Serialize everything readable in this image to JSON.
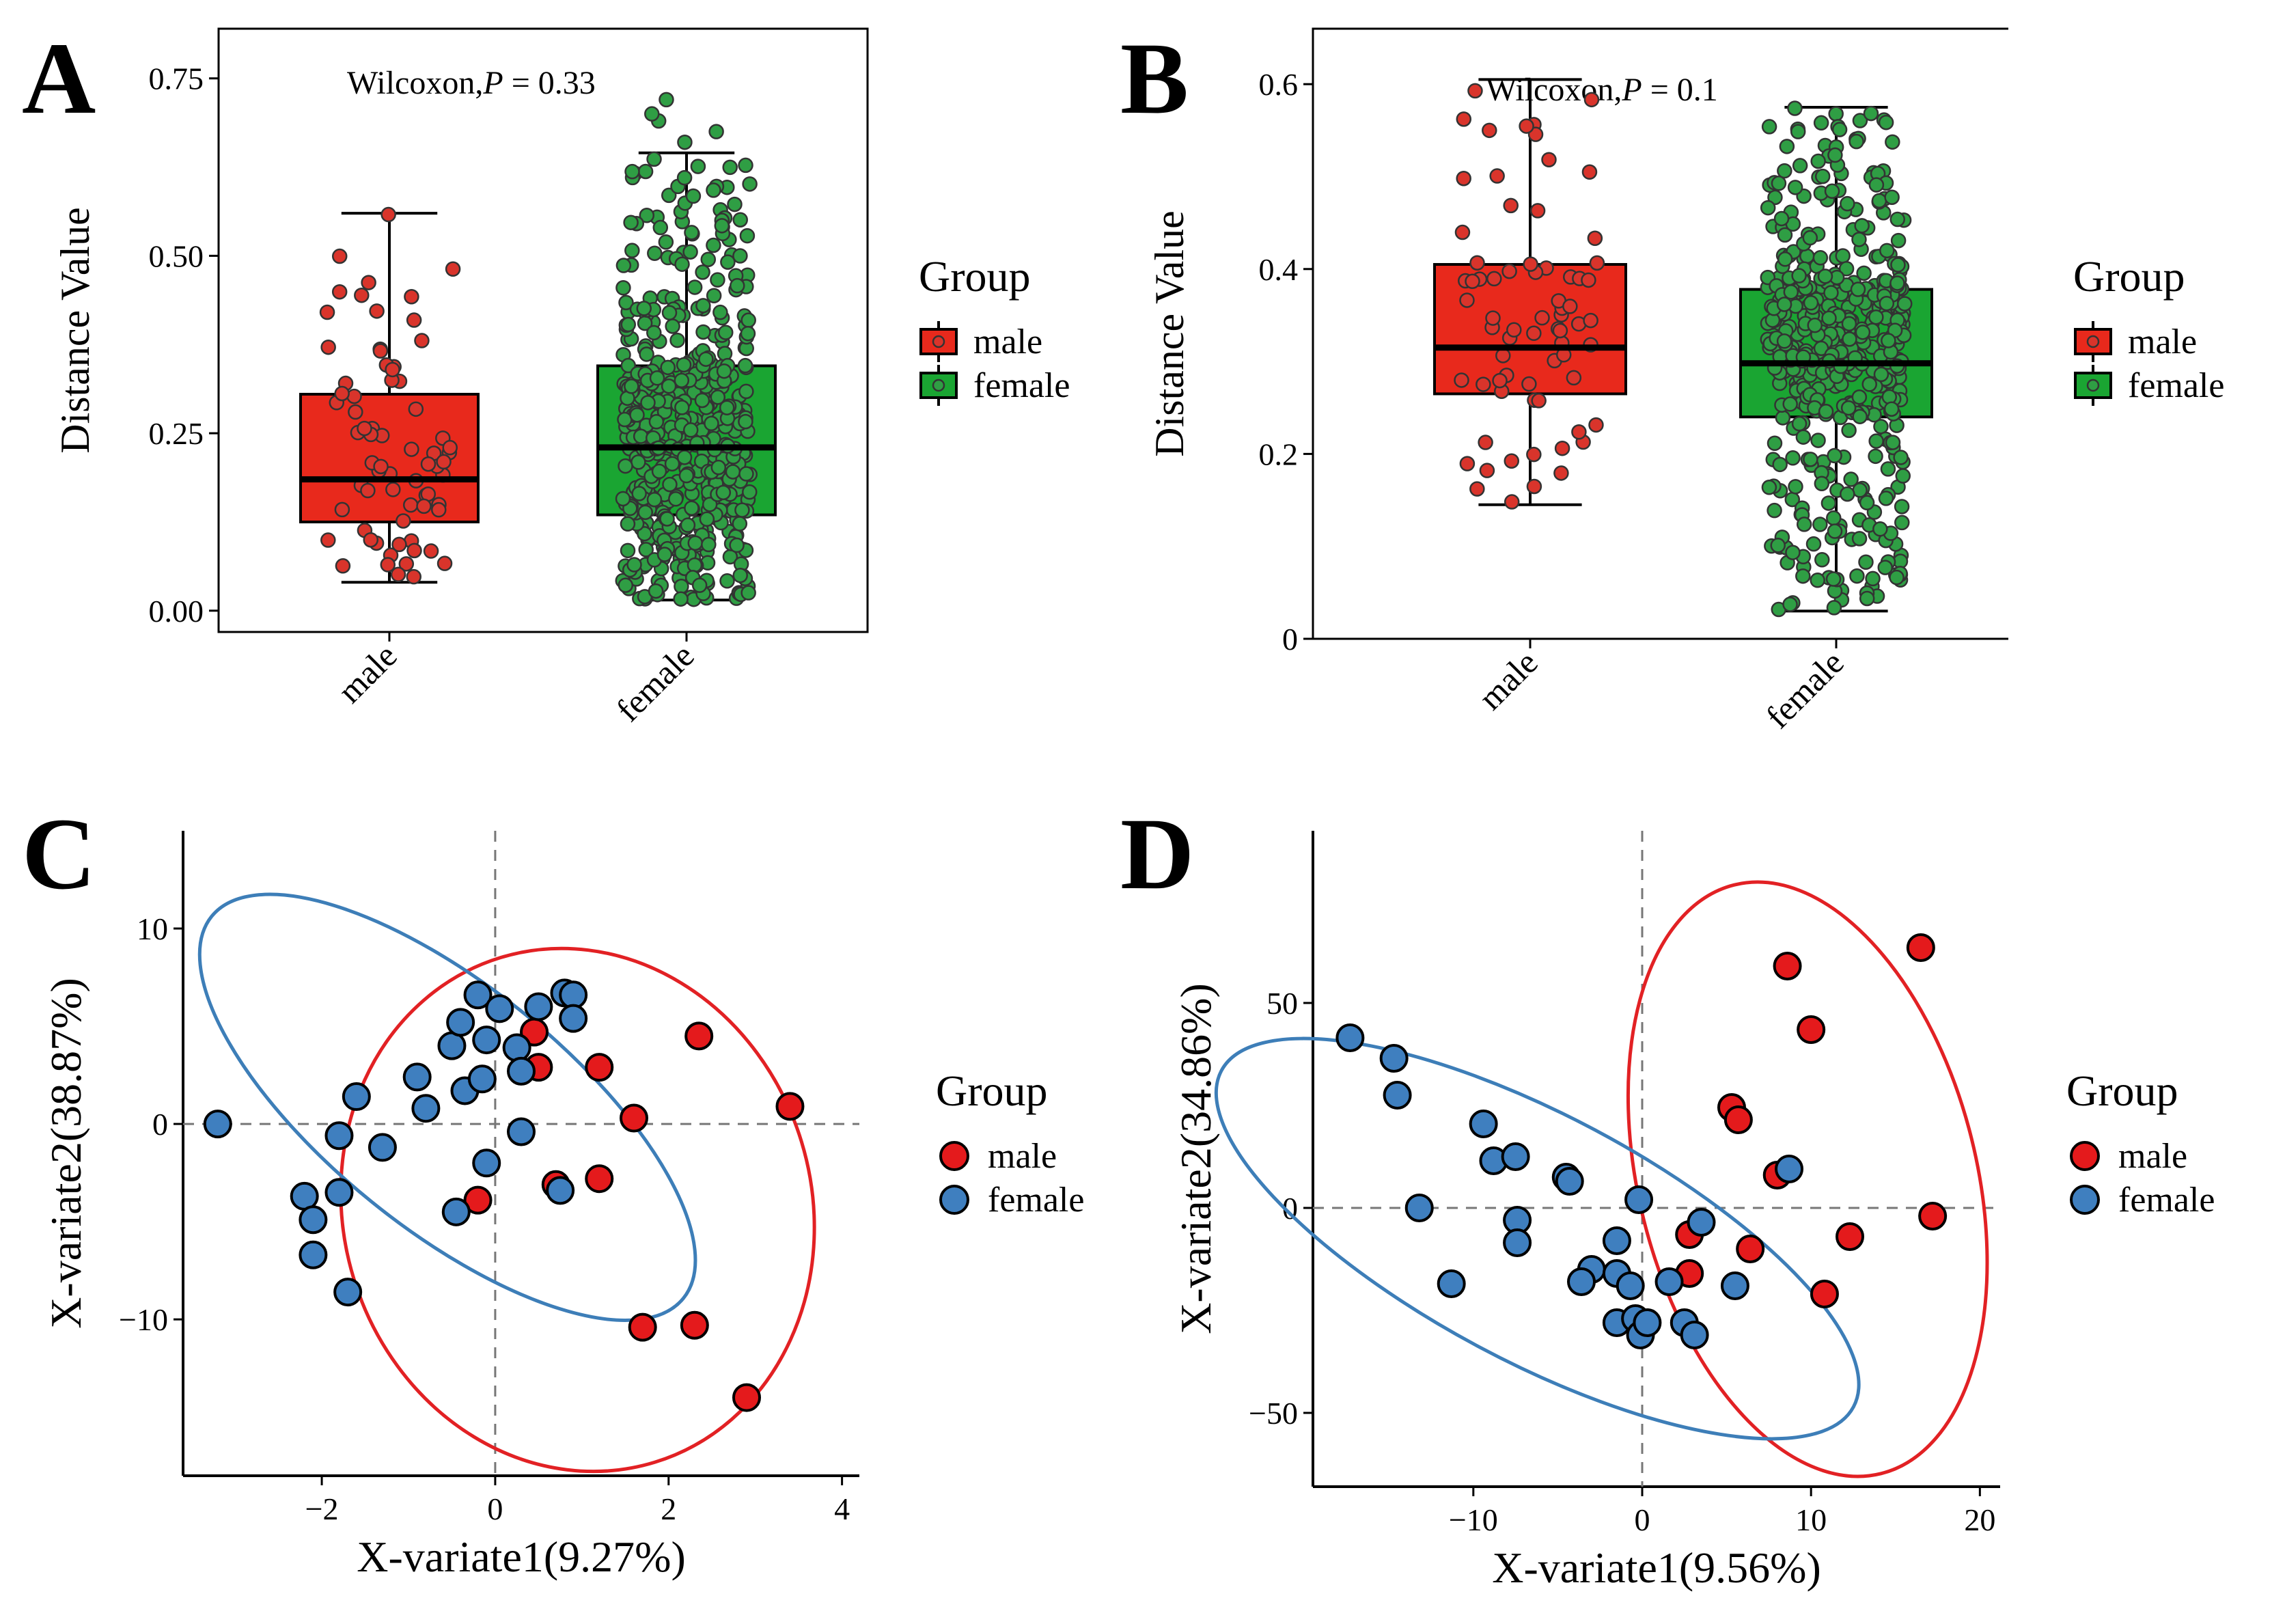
{
  "colors": {
    "male": "#e8291c",
    "female": "#1aa532",
    "male_pt": "#d9342b",
    "female_pt": "#2f9e44",
    "ell_male": "#e22124",
    "ell_female": "#3d7eb8",
    "pca_male": "#e41a1c",
    "pca_female": "#3f7fbf"
  },
  "legend": {
    "title": "Group",
    "male": "male",
    "female": "female"
  },
  "panels": {
    "A": {
      "label": "A",
      "annotation_prefix": "Wilcoxon,",
      "annotation_p": "P",
      "annotation_suffix": " = 0.33"
    },
    "B": {
      "label": "B",
      "annotation_prefix": "Wilcoxon,",
      "annotation_p": "P",
      "annotation_suffix": " = 0.1"
    },
    "C": {
      "label": "C"
    },
    "D": {
      "label": "D"
    }
  },
  "chart_data": [
    {
      "id": "A",
      "type": "box",
      "title": "",
      "xlabel": "",
      "ylabel": "Distance Value",
      "categories": [
        "male",
        "female"
      ],
      "ylim": [
        -0.03,
        0.82
      ],
      "yticks": [
        0.0,
        0.25,
        0.5,
        0.75
      ],
      "ytick_labels": [
        "0.00",
        "0.25",
        "0.50",
        "0.75"
      ],
      "boxes": [
        {
          "name": "male",
          "min": 0.04,
          "q1": 0.125,
          "median": 0.185,
          "q3": 0.305,
          "max": 0.56,
          "n_points": 70
        },
        {
          "name": "female",
          "min": 0.015,
          "q1": 0.135,
          "median": 0.23,
          "q3": 0.345,
          "max": 0.645,
          "n_points": 480
        }
      ],
      "outliers": {
        "female": [
          0.66,
          0.675,
          0.69,
          0.7,
          0.72
        ]
      },
      "annotation": "Wilcoxon,P = 0.33"
    },
    {
      "id": "B",
      "type": "box",
      "title": "",
      "xlabel": "",
      "ylabel": "Distance Value",
      "categories": [
        "male",
        "female"
      ],
      "ylim": [
        0,
        0.66
      ],
      "yticks": [
        0,
        0.2,
        0.4,
        0.6
      ],
      "ytick_labels": [
        "0",
        "0.2",
        "0.4",
        "0.6"
      ],
      "boxes": [
        {
          "name": "male",
          "min": 0.145,
          "q1": 0.265,
          "median": 0.315,
          "q3": 0.405,
          "max": 0.605,
          "n_points": 70
        },
        {
          "name": "female",
          "min": 0.03,
          "q1": 0.24,
          "median": 0.298,
          "q3": 0.378,
          "max": 0.575,
          "n_points": 480
        }
      ],
      "annotation": "Wilcoxon,P = 0.1"
    },
    {
      "id": "C",
      "type": "scatter",
      "xlabel": "X-variate1(9.27%)",
      "ylabel": "X-variate2(38.87%)",
      "xlim": [
        -3.6,
        4.2
      ],
      "ylim": [
        -18.0,
        15.0
      ],
      "xticks": [
        -2,
        0,
        2,
        4
      ],
      "yticks": [
        -10,
        0,
        10
      ],
      "series": [
        {
          "name": "male",
          "points": [
            [
              0.45,
              4.7
            ],
            [
              0.5,
              2.9
            ],
            [
              1.2,
              2.9
            ],
            [
              2.35,
              4.5
            ],
            [
              3.4,
              0.9
            ],
            [
              1.6,
              0.3
            ],
            [
              1.2,
              -2.8
            ],
            [
              0.7,
              -3.1
            ],
            [
              -0.2,
              -3.9
            ],
            [
              1.7,
              -10.4
            ],
            [
              2.3,
              -10.3
            ],
            [
              2.9,
              -14.0
            ]
          ]
        },
        {
          "name": "female",
          "points": [
            [
              -3.2,
              0.0
            ],
            [
              -2.2,
              -3.7
            ],
            [
              -2.1,
              -4.9
            ],
            [
              -2.1,
              -6.7
            ],
            [
              -1.8,
              -0.6
            ],
            [
              -1.8,
              -3.5
            ],
            [
              -1.7,
              -8.6
            ],
            [
              -1.6,
              1.4
            ],
            [
              -1.3,
              -1.2
            ],
            [
              -0.9,
              2.4
            ],
            [
              -0.8,
              0.8
            ],
            [
              -0.5,
              4.0
            ],
            [
              -0.4,
              5.2
            ],
            [
              -0.35,
              1.7
            ],
            [
              -0.2,
              6.6
            ],
            [
              -0.1,
              4.3
            ],
            [
              -0.15,
              2.3
            ],
            [
              0.05,
              5.9
            ],
            [
              0.25,
              3.9
            ],
            [
              0.3,
              2.7
            ],
            [
              0.3,
              -0.4
            ],
            [
              -0.1,
              -2.0
            ],
            [
              -0.45,
              -4.5
            ],
            [
              0.5,
              6.0
            ],
            [
              0.75,
              -3.4
            ],
            [
              0.8,
              6.7
            ],
            [
              0.9,
              6.6
            ],
            [
              0.9,
              5.4
            ]
          ]
        }
      ],
      "ellipses": [
        {
          "group": "male",
          "cx": 0.95,
          "cy": -4.4,
          "rx": 2.7,
          "ry": 13.5,
          "rotate_deg": -17
        },
        {
          "group": "female",
          "cx": -0.55,
          "cy": 0.85,
          "rx": 3.5,
          "ry": 6.2,
          "rotate_deg": 39
        }
      ]
    },
    {
      "id": "D",
      "type": "scatter",
      "xlabel": "X-variate1(9.56%)",
      "ylabel": "X-variate2(34.86%)",
      "xlim": [
        -19.5,
        21.2
      ],
      "ylim": [
        -68.0,
        92.0
      ],
      "xticks": [
        -10,
        0,
        10,
        20
      ],
      "yticks": [
        -50,
        0,
        50
      ],
      "series": [
        {
          "name": "male",
          "points": [
            [
              8.6,
              59
            ],
            [
              16.5,
              63.5
            ],
            [
              10.0,
              43.5
            ],
            [
              5.3,
              24.5
            ],
            [
              5.7,
              21.5
            ],
            [
              8.0,
              8.0
            ],
            [
              17.2,
              -2
            ],
            [
              12.3,
              -7
            ],
            [
              6.4,
              -10
            ],
            [
              2.8,
              -16
            ],
            [
              2.8,
              -6.5
            ],
            [
              10.8,
              -21
            ]
          ]
        },
        {
          "name": "female",
          "points": [
            [
              -17.3,
              41.5
            ],
            [
              -14.7,
              36.5
            ],
            [
              -14.5,
              27.5
            ],
            [
              -13.2,
              0
            ],
            [
              -9.4,
              20.5
            ],
            [
              -8.8,
              11.5
            ],
            [
              -7.5,
              12.5
            ],
            [
              -7.4,
              -3
            ],
            [
              -7.4,
              -8.5
            ],
            [
              -11.3,
              -18.5
            ],
            [
              -4.5,
              7.5
            ],
            [
              -4.3,
              6.5
            ],
            [
              -0.2,
              2
            ],
            [
              -3.0,
              -15
            ],
            [
              -3.6,
              -18
            ],
            [
              -1.5,
              -16
            ],
            [
              -1.5,
              -8
            ],
            [
              -1.5,
              -28
            ],
            [
              -0.7,
              -19
            ],
            [
              -0.4,
              -27
            ],
            [
              -0.1,
              -31
            ],
            [
              0.3,
              -28
            ],
            [
              1.6,
              -18
            ],
            [
              2.5,
              -28
            ],
            [
              3.1,
              -31
            ],
            [
              3.5,
              -3.5
            ],
            [
              5.5,
              -19
            ],
            [
              8.7,
              9.5
            ]
          ]
        }
      ],
      "ellipses": [
        {
          "group": "male",
          "cx": 9.8,
          "cy": 7,
          "rx": 10.0,
          "ry": 74,
          "rotate_deg": -14
        },
        {
          "group": "female",
          "cx": -6.2,
          "cy": -7.5,
          "rx": 21.2,
          "ry": 30,
          "rotate_deg": 28
        }
      ]
    }
  ]
}
